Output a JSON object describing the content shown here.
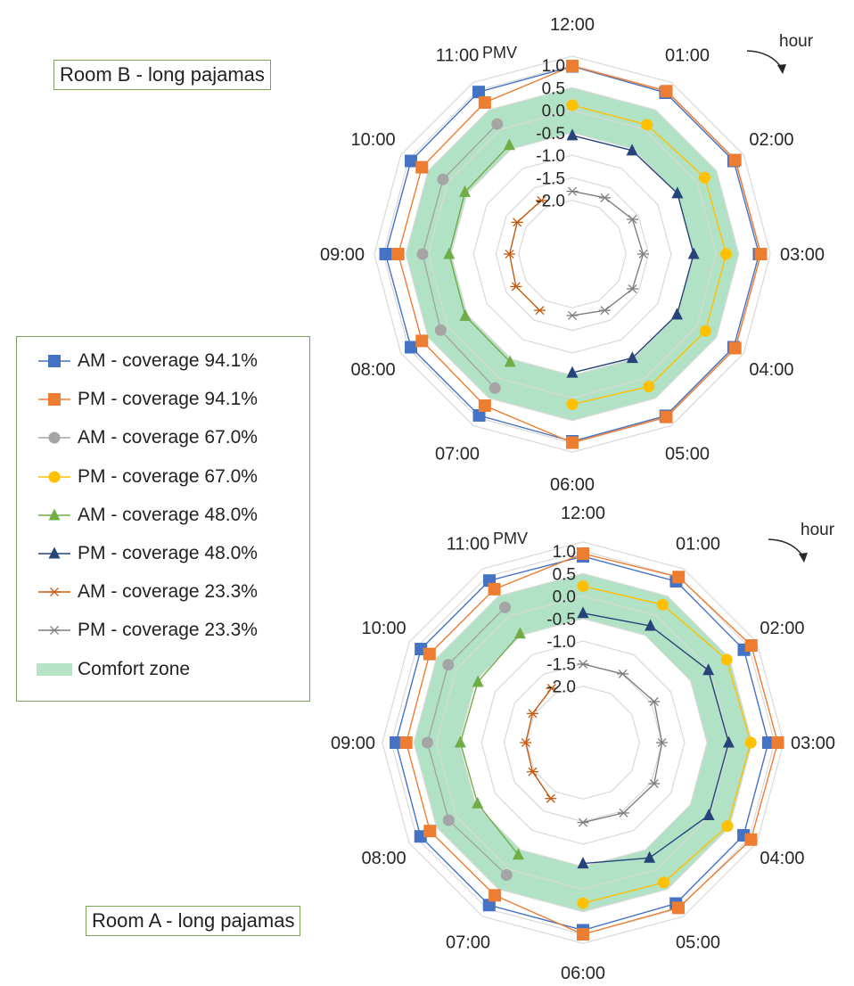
{
  "chart_data": [
    {
      "type": "radar",
      "title": "Room B - long pajamas",
      "axis_label": "PMV",
      "direction_label": "hour",
      "categories": [
        "12:00",
        "01:00",
        "02:00",
        "03:00",
        "04:00",
        "05:00",
        "06:00",
        "07:00",
        "08:00",
        "09:00",
        "10:00",
        "11:00"
      ],
      "radial_ticks": [
        "1.0",
        "0.5",
        "0.0",
        "-0.5",
        "-1.0",
        "-1.5",
        "-2.0"
      ],
      "rlim": [
        -2.5,
        1.0
      ],
      "comfort_zone": [
        -0.5,
        0.5
      ],
      "series": [
        {
          "name": "AM - coverage 94.1%",
          "values": [
            0.97,
            0.94,
            0.94,
            0.95,
            0.94,
            0.95,
            0.96,
            0.94,
            0.94,
            0.95,
            0.94,
            0.96
          ]
        },
        {
          "name": "PM - coverage 94.1%",
          "values": [
            0.98,
            0.98,
            0.98,
            0.99,
            0.98,
            0.98,
            0.99,
            0.69,
            0.66,
            0.67,
            0.66,
            0.69
          ]
        },
        {
          "name": "AM - coverage 67.0%",
          "values": [
            null,
            null,
            null,
            null,
            null,
            null,
            null,
            0.24,
            0.18,
            0.13,
            0.12,
            0.14
          ]
        },
        {
          "name": "PM - coverage 67.0%",
          "values": [
            0.11,
            0.12,
            0.2,
            0.22,
            0.22,
            0.2,
            0.14,
            null,
            null,
            null,
            null,
            null
          ]
        },
        {
          "name": "AM - coverage 48.0%",
          "values": [
            null,
            null,
            null,
            null,
            null,
            null,
            null,
            -0.43,
            -0.45,
            -0.46,
            -0.44,
            -0.4
          ]
        },
        {
          "name": "PM - coverage 48.0%",
          "values": [
            -0.56,
            -0.54,
            -0.5,
            -0.5,
            -0.51,
            -0.53,
            -0.56,
            null,
            null,
            null,
            null,
            null
          ]
        },
        {
          "name": "AM - coverage 23.3%",
          "values": [
            null,
            null,
            null,
            null,
            null,
            null,
            null,
            -1.75,
            -1.75,
            -1.8,
            -1.78,
            -1.82
          ]
        },
        {
          "name": "PM - coverage 23.3%",
          "values": [
            -1.8,
            -1.75,
            -1.65,
            -1.62,
            -1.65,
            -1.75,
            -1.83,
            null,
            null,
            null,
            null,
            null
          ]
        }
      ]
    },
    {
      "type": "radar",
      "title": "Room A - long pajamas",
      "axis_label": "PMV",
      "direction_label": "hour",
      "categories": [
        "12:00",
        "01:00",
        "02:00",
        "03:00",
        "04:00",
        "05:00",
        "06:00",
        "07:00",
        "08:00",
        "09:00",
        "10:00",
        "11:00"
      ],
      "radial_ticks": [
        "1.0",
        "0.5",
        "0.0",
        "-0.5",
        "-1.0",
        "-1.5",
        "-2.0"
      ],
      "rlim": [
        -2.5,
        1.0
      ],
      "comfort_zone": [
        -0.5,
        0.5
      ],
      "series": [
        {
          "name": "AM - coverage 94.1%",
          "values": [
            0.88,
            0.88,
            0.87,
            0.86,
            0.86,
            0.87,
            0.91,
            0.91,
            0.91,
            0.9,
            0.9,
            0.9
          ]
        },
        {
          "name": "PM - coverage 94.1%",
          "values": [
            0.94,
            0.99,
            1.06,
            1.07,
            1.05,
            0.98,
            1.0,
            0.66,
            0.67,
            0.67,
            0.68,
            0.68
          ]
        },
        {
          "name": "AM - coverage 67.0%",
          "values": [
            null,
            null,
            null,
            null,
            null,
            null,
            null,
            0.14,
            0.19,
            0.2,
            0.2,
            0.21
          ]
        },
        {
          "name": "PM - coverage 67.0%",
          "values": [
            0.22,
            0.28,
            0.43,
            0.47,
            0.45,
            0.33,
            0.31,
            null,
            null,
            null,
            null,
            null
          ]
        },
        {
          "name": "AM - coverage 48.0%",
          "values": [
            null,
            null,
            null,
            null,
            null,
            null,
            null,
            -0.38,
            -0.55,
            -0.53,
            -0.56,
            -0.46
          ]
        },
        {
          "name": "PM - coverage 48.0%",
          "values": [
            -0.38,
            -0.26,
            -0.04,
            -0.02,
            -0.03,
            -0.3,
            -0.57,
            null,
            null,
            null,
            null,
            null
          ]
        },
        {
          "name": "AM - coverage 23.3%",
          "values": [
            null,
            null,
            null,
            null,
            null,
            null,
            null,
            -1.82,
            -1.96,
            -1.98,
            -1.96,
            -1.86
          ]
        },
        {
          "name": "PM - coverage 23.3%",
          "values": [
            -1.51,
            -1.49,
            -1.43,
            -1.5,
            -1.43,
            -1.45,
            -1.48,
            null,
            null,
            null,
            null,
            null
          ]
        }
      ]
    }
  ],
  "legend": {
    "items": [
      {
        "label": "AM - coverage 94.1%",
        "color": "#4472c4",
        "marker": "square"
      },
      {
        "label": "PM - coverage 94.1%",
        "color": "#ed7d31",
        "marker": "square"
      },
      {
        "label": "AM - coverage 67.0%",
        "color": "#a5a5a5",
        "marker": "circle"
      },
      {
        "label": "PM - coverage 67.0%",
        "color": "#ffc000",
        "marker": "circle"
      },
      {
        "label": "AM - coverage 48.0%",
        "color": "#70ad47",
        "marker": "triangle"
      },
      {
        "label": "PM - coverage 48.0%",
        "color": "#264478",
        "marker": "triangle"
      },
      {
        "label": "AM - coverage 23.3%",
        "color": "#c55a11",
        "marker": "star"
      },
      {
        "label": "PM - coverage 23.3%",
        "color": "#7f7f7f",
        "marker": "star"
      },
      {
        "label": "Comfort zone",
        "color": "#b7e4c7",
        "marker": "band"
      }
    ]
  },
  "colors": {
    "grid": "#d9d9d9",
    "comfort_fill": "#a9dfbf",
    "label_border": "#7aa05a"
  }
}
